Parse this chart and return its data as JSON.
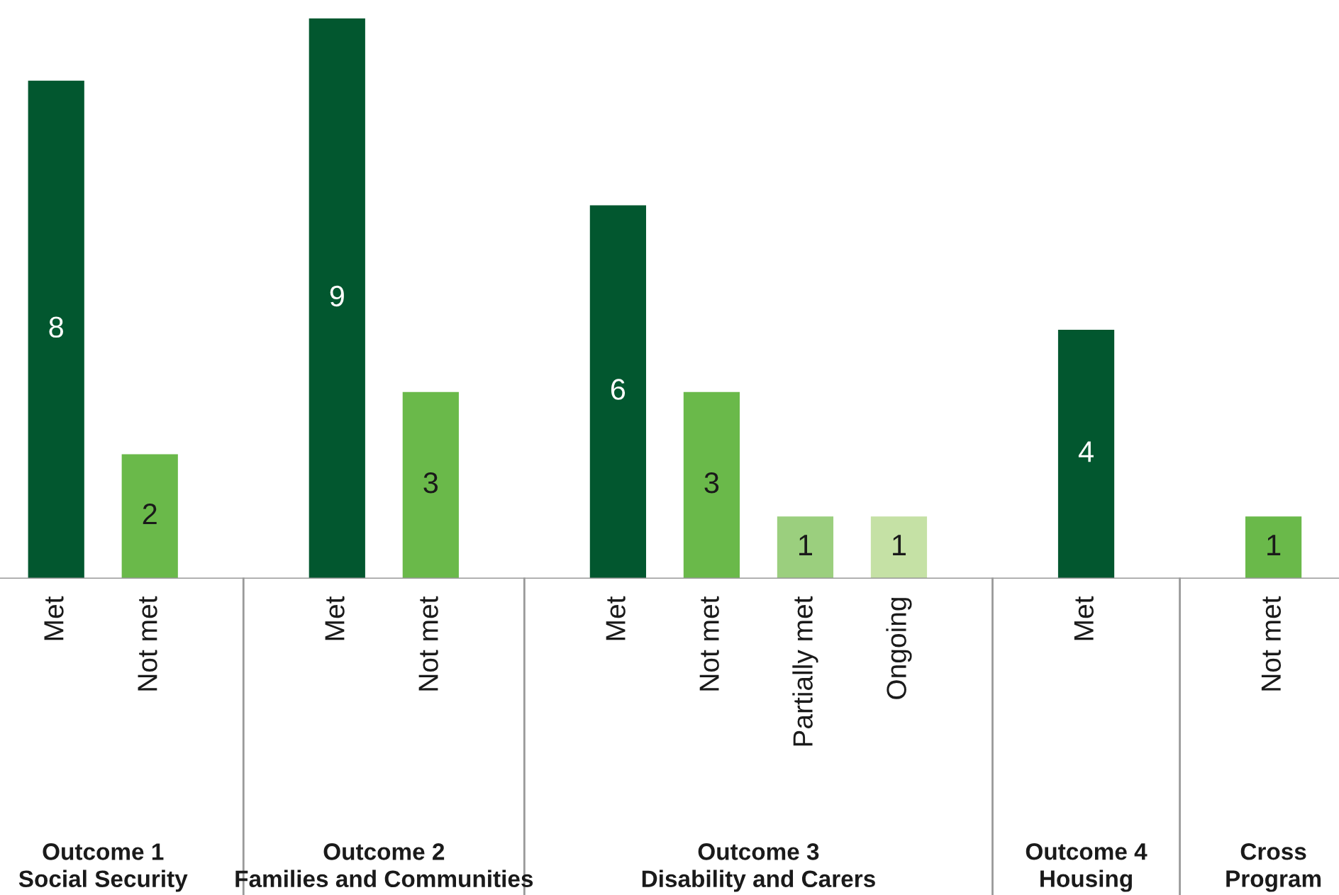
{
  "chart_data": {
    "type": "bar",
    "categories": [
      "Met",
      "Not met",
      null,
      "Met",
      "Not met",
      null,
      "Met",
      "Not met",
      "Partially met",
      "Ongoing",
      null,
      "Met",
      null,
      "Not met"
    ],
    "values": [
      8,
      2,
      null,
      9,
      3,
      null,
      6,
      3,
      1,
      1,
      null,
      4,
      null,
      1
    ],
    "colors": [
      "#02572f",
      "#6ab94a",
      null,
      "#02572f",
      "#6ab94a",
      null,
      "#02572f",
      "#6ab94a",
      "#9bcf7e",
      "#c5e1a5",
      null,
      "#02572f",
      null,
      "#6ab94a"
    ],
    "data_labels": true,
    "annotations": [
      "Outcome 1\nSocial Security",
      "Outcome 2\nFamilies and Communities",
      "Outcome 3\nDisability and Carers",
      "Outcome 4\nHousing",
      "Cross\nProgram"
    ],
    "legend": false
  }
}
